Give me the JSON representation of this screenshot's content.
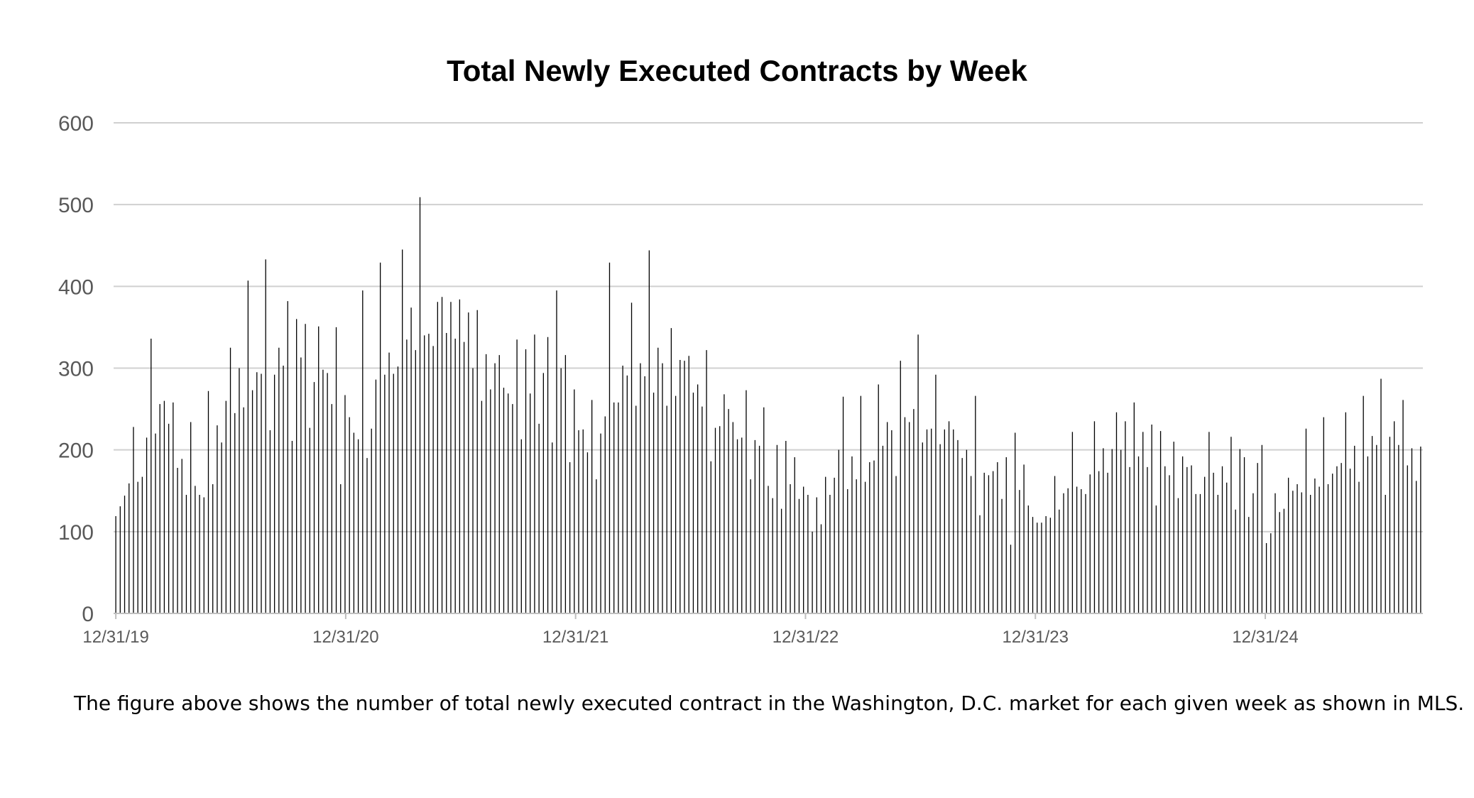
{
  "chart_data": {
    "type": "bar",
    "title": "Total Newly Executed Contracts by Week",
    "xlabel": "",
    "ylabel": "",
    "ylim": [
      0,
      600
    ],
    "y_ticks": [
      "0",
      "100",
      "200",
      "300",
      "400",
      "500",
      "600"
    ],
    "x_tick_labels": [
      "12/31/19",
      "12/31/20",
      "12/31/21",
      "12/31/22",
      "12/31/23",
      "12/31/24"
    ],
    "x_start": "12/31/19",
    "grid": true,
    "legend": "none",
    "bar_color": "#000000",
    "grid_color": "#d0d0d0",
    "values": [
      119,
      131,
      144,
      159,
      228,
      161,
      167,
      215,
      336,
      220,
      256,
      260,
      232,
      258,
      178,
      189,
      145,
      234,
      156,
      145,
      142,
      272,
      158,
      230,
      209,
      260,
      325,
      245,
      300,
      252,
      407,
      273,
      295,
      293,
      433,
      224,
      292,
      325,
      303,
      382,
      211,
      360,
      313,
      354,
      227,
      283,
      351,
      298,
      294,
      256,
      350,
      158,
      267,
      240,
      221,
      213,
      395,
      190,
      226,
      286,
      429,
      292,
      319,
      293,
      302,
      445,
      335,
      374,
      322,
      509,
      340,
      342,
      327,
      381,
      387,
      343,
      381,
      336,
      384,
      332,
      368,
      300,
      371,
      260,
      317,
      274,
      306,
      316,
      276,
      269,
      256,
      335,
      213,
      323,
      269,
      341,
      232,
      294,
      338,
      209,
      395,
      300,
      316,
      185,
      274,
      224,
      225,
      197,
      261,
      164,
      220,
      241,
      429,
      258,
      258,
      303,
      291,
      380,
      254,
      306,
      290,
      444,
      270,
      325,
      306,
      254,
      349,
      266,
      310,
      309,
      315,
      270,
      280,
      253,
      322,
      186,
      227,
      229,
      268,
      250,
      234,
      213,
      215,
      273,
      164,
      212,
      205,
      252,
      156,
      141,
      206,
      128,
      211,
      158,
      191,
      140,
      155,
      145,
      100,
      142,
      109,
      167,
      145,
      166,
      200,
      265,
      152,
      192,
      164,
      266,
      161,
      185,
      187,
      280,
      205,
      234,
      224,
      168,
      309,
      240,
      234,
      250,
      341,
      209,
      225,
      226,
      292,
      207,
      225,
      235,
      225,
      212,
      190,
      200,
      168,
      266,
      120,
      172,
      169,
      174,
      185,
      140,
      191,
      84,
      221,
      151,
      182,
      132,
      118,
      111,
      111,
      119,
      117,
      168,
      127,
      147,
      153,
      222,
      155,
      152,
      146,
      170,
      235,
      174,
      202,
      172,
      201,
      246,
      200,
      235,
      179,
      258,
      192,
      222,
      179,
      231,
      132,
      223,
      180,
      169,
      210,
      141,
      192,
      179,
      181,
      146,
      146,
      167,
      222,
      172,
      145,
      180,
      160,
      216,
      127,
      201,
      191,
      118,
      147,
      184,
      206,
      86,
      98,
      147,
      124,
      128,
      166,
      150,
      158,
      148,
      226,
      145,
      165,
      155,
      240,
      158,
      171,
      180,
      184,
      246,
      177,
      205,
      161,
      266,
      192,
      217,
      206,
      287,
      145,
      216,
      235,
      206,
      261,
      181,
      202,
      162,
      204
    ]
  },
  "caption": "The figure above shows the number of total newly executed contract in the Washington, D.C. market for each given week as shown in MLS."
}
